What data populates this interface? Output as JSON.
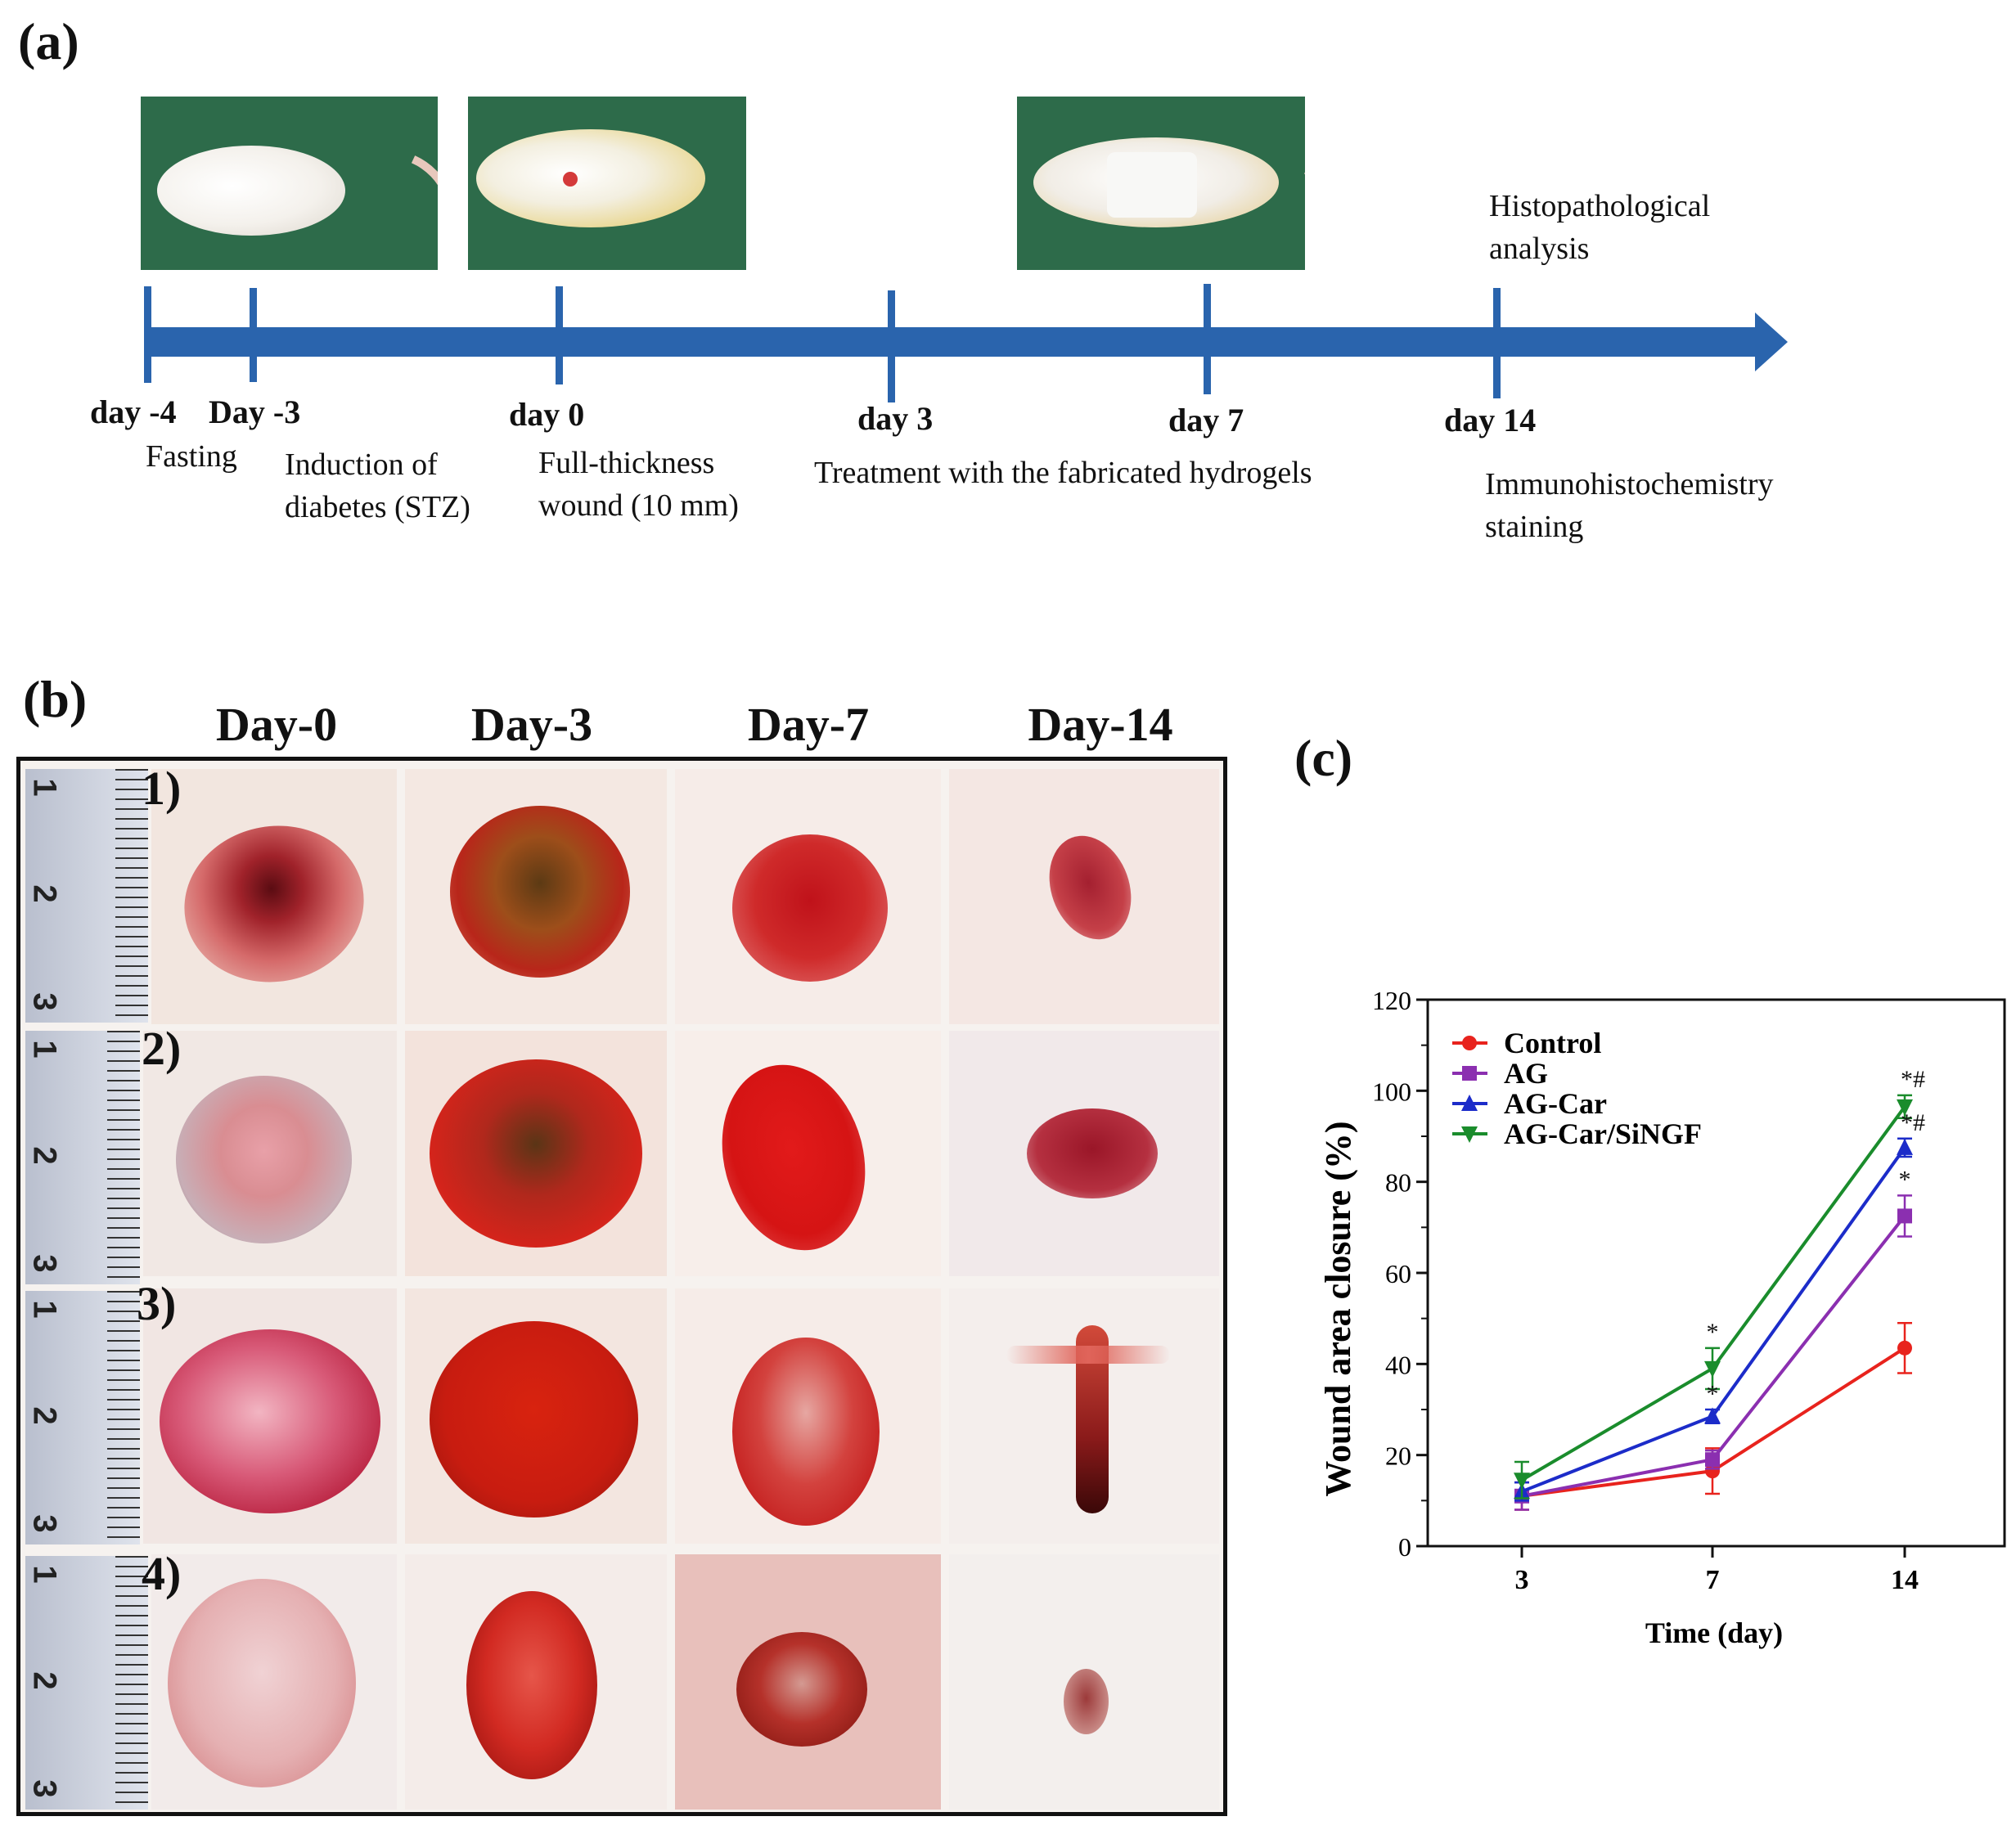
{
  "panel_a": {
    "letter": "(a)",
    "days": [
      {
        "label": "day -4"
      },
      {
        "label": "Day -3"
      },
      {
        "label": "day 0"
      },
      {
        "label": "day 3"
      },
      {
        "label": "day 7"
      },
      {
        "label": "day 14"
      }
    ],
    "events": {
      "fasting": "Fasting",
      "induction_1": "Induction  of",
      "induction_2": "diabetes  (STZ)",
      "wound_1": "Full-thickness",
      "wound_2": "wound (10 mm)",
      "treatment": "Treatment   with the  fabricated  hydrogels",
      "histo_1": "Histopathological",
      "histo_2": "analysis",
      "immuno_1": "Immunohistochemistry",
      "immuno_2": "staining"
    },
    "arrow_color": "#2a64ad"
  },
  "panel_b": {
    "letter": "(b)",
    "columns": [
      "Day-0",
      "Day-3",
      "Day-7",
      "Day-14"
    ],
    "rows": [
      "1)",
      "2)",
      "3)",
      "4)"
    ],
    "ruler_numbers": [
      "1",
      "2",
      "3"
    ]
  },
  "panel_c": {
    "letter": "(c)"
  },
  "chart_data": {
    "type": "line",
    "title": "",
    "xlabel": "Time (day)",
    "ylabel": "Wound area closure  (%)",
    "categories": [
      "3",
      "7",
      "14"
    ],
    "ylim": [
      0,
      120
    ],
    "yticks": [
      "0",
      "20",
      "40",
      "60",
      "80",
      "100",
      "120"
    ],
    "legend_position": "top-left",
    "series": [
      {
        "name": "Control",
        "color": "#e8231d",
        "marker": "circle",
        "values": [
          11,
          16.5,
          43.5
        ],
        "errors": [
          3,
          5,
          5.5
        ]
      },
      {
        "name": "AG",
        "color": "#8b2fb0",
        "marker": "square",
        "values": [
          11,
          19,
          72.5
        ],
        "errors": [
          3,
          2,
          4.5
        ]
      },
      {
        "name": "AG-Car",
        "color": "#1c2cc9",
        "marker": "triangle-up",
        "values": [
          12,
          28.5,
          87.5
        ],
        "errors": [
          2,
          1.5,
          2
        ]
      },
      {
        "name": "AG-Car/SiNGF",
        "color": "#1a8c2c",
        "marker": "triangle-down",
        "values": [
          14.5,
          39,
          96.5
        ],
        "errors": [
          4,
          4.5,
          2.5
        ]
      }
    ],
    "annotations": [
      {
        "text": "*",
        "x": "7",
        "series": "AG-Car/SiNGF"
      },
      {
        "text": "*",
        "x": "7",
        "series": "AG-Car"
      },
      {
        "text": "*",
        "x": "14",
        "series": "AG"
      },
      {
        "text": "*#",
        "x": "14",
        "series": "AG-Car"
      },
      {
        "text": "*#",
        "x": "14",
        "series": "AG-Car/SiNGF"
      }
    ]
  }
}
